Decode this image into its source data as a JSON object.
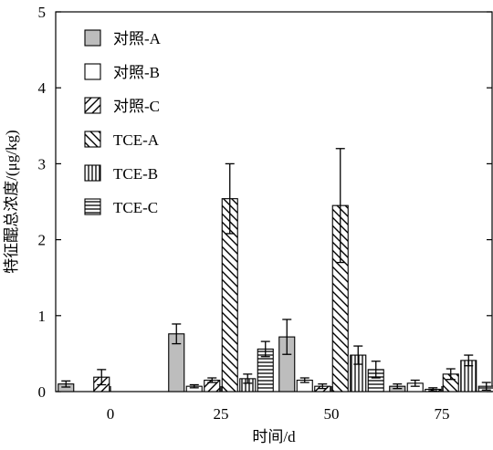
{
  "chart_data": {
    "type": "bar",
    "xlabel": "时间/d",
    "ylabel": "特征醌总浓度/(μg/kg)",
    "ylim": [
      0,
      5
    ],
    "yticks": [
      "0",
      "1",
      "2",
      "3",
      "4",
      "5"
    ],
    "categories": [
      "0",
      "25",
      "50",
      "75"
    ],
    "legend_position": "top-left",
    "series": [
      {
        "name": "对照-A",
        "pattern": "gray",
        "values": [
          0.1,
          0.76,
          0.72,
          0.07
        ],
        "errors": [
          0.04,
          0.13,
          0.23,
          0.03
        ]
      },
      {
        "name": "对照-B",
        "pattern": "white",
        "values": [
          null,
          0.07,
          0.15,
          0.11
        ],
        "errors": [
          null,
          0.02,
          0.03,
          0.04
        ]
      },
      {
        "name": "对照-C",
        "pattern": "diag-right",
        "values": [
          0.19,
          0.15,
          0.07,
          0.03
        ],
        "errors": [
          0.1,
          0.03,
          0.03,
          0.02
        ]
      },
      {
        "name": "TCE-A",
        "pattern": "diag-left",
        "values": [
          null,
          2.54,
          2.45,
          0.23
        ],
        "errors": [
          null,
          0.46,
          0.75,
          0.07
        ]
      },
      {
        "name": "TCE-B",
        "pattern": "vertical",
        "values": [
          null,
          0.17,
          0.48,
          0.41
        ],
        "errors": [
          null,
          0.06,
          0.12,
          0.07
        ]
      },
      {
        "name": "TCE-C",
        "pattern": "horizontal",
        "values": [
          null,
          0.56,
          0.29,
          0.07
        ],
        "errors": [
          null,
          0.1,
          0.11,
          0.05
        ]
      }
    ]
  }
}
